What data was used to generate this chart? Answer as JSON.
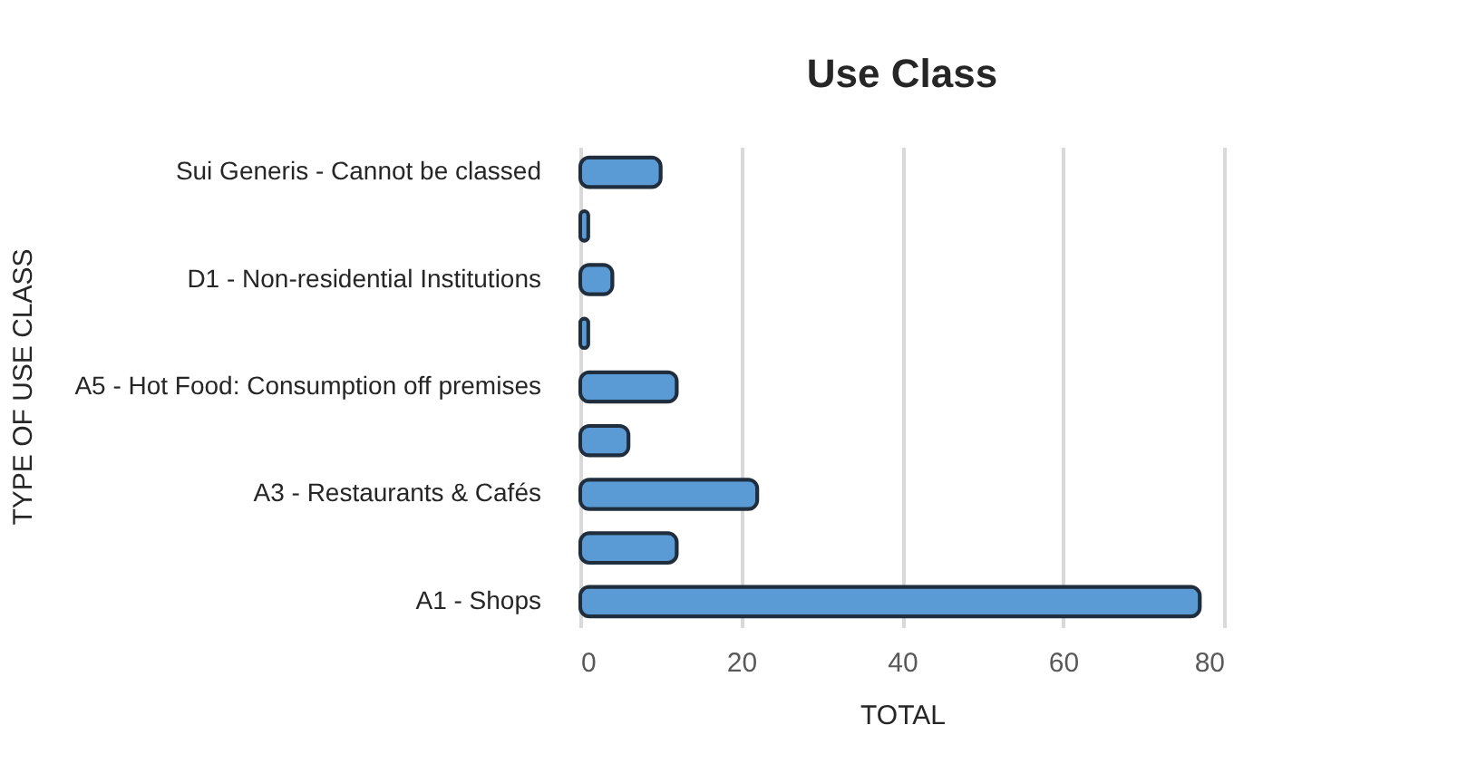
{
  "chart_data": {
    "type": "bar",
    "orientation": "horizontal",
    "title": "Use Class",
    "xlabel": "TOTAL",
    "ylabel": "TYPE OF USE CLASS",
    "categories": [
      "Sui Generis - Cannot be classed",
      null,
      "D1 - Non-residential Institutions",
      null,
      "A5 - Hot Food: Consumption off premises",
      null,
      "A3 - Restaurants & Cafés",
      null,
      "A1 - Shops"
    ],
    "values": [
      10,
      1,
      4,
      1,
      12,
      6,
      22,
      12,
      77
    ],
    "color": "#5b9bd5",
    "xlim": [
      0,
      80
    ],
    "xticks": [
      0,
      20,
      40,
      60,
      80
    ],
    "grid": "x"
  }
}
